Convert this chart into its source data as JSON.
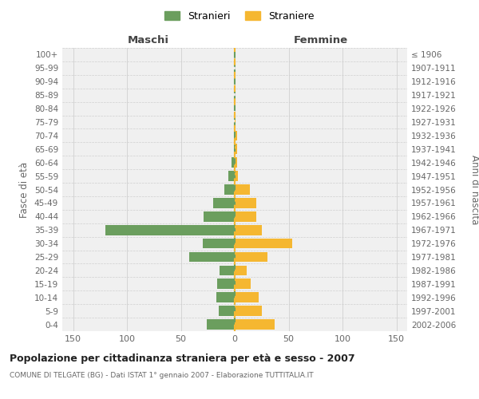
{
  "age_groups": [
    "0-4",
    "5-9",
    "10-14",
    "15-19",
    "20-24",
    "25-29",
    "30-34",
    "35-39",
    "40-44",
    "45-49",
    "50-54",
    "55-59",
    "60-64",
    "65-69",
    "70-74",
    "75-79",
    "80-84",
    "85-89",
    "90-94",
    "95-99",
    "100+"
  ],
  "birth_years": [
    "2002-2006",
    "1997-2001",
    "1992-1996",
    "1987-1991",
    "1982-1986",
    "1977-1981",
    "1972-1976",
    "1967-1971",
    "1962-1966",
    "1957-1961",
    "1952-1956",
    "1947-1951",
    "1942-1946",
    "1937-1941",
    "1932-1936",
    "1927-1931",
    "1922-1926",
    "1917-1921",
    "1912-1916",
    "1907-1911",
    "≤ 1906"
  ],
  "maschi": [
    26,
    15,
    17,
    16,
    14,
    42,
    30,
    120,
    29,
    20,
    10,
    6,
    3,
    1,
    1,
    0,
    0,
    0,
    0,
    0,
    0
  ],
  "femmine": [
    37,
    25,
    22,
    15,
    11,
    30,
    53,
    25,
    20,
    20,
    14,
    3,
    2,
    2,
    2,
    1,
    0,
    0,
    0,
    0,
    0
  ],
  "maschi_color": "#6b9e5e",
  "femmine_color": "#f5b731",
  "background_color": "#f0f0f0",
  "fig_background": "#ffffff",
  "title": "Popolazione per cittadinanza straniera per età e sesso - 2007",
  "subtitle": "COMUNE DI TELGATE (BG) - Dati ISTAT 1° gennaio 2007 - Elaborazione TUTTITALIA.IT",
  "header_left": "Maschi",
  "header_right": "Femmine",
  "ylabel_left": "Fasce di età",
  "ylabel_right": "Anni di nascita",
  "xlim": 160,
  "legend_stranieri": "Stranieri",
  "legend_straniere": "Straniere",
  "grid_color": "#d0d0d0",
  "center_line_color_green": "#6b9e5e",
  "center_line_color_yellow": "#f5b731",
  "xtick_vals": [
    -150,
    -100,
    -50,
    0,
    50,
    100,
    150
  ],
  "title_fontsize": 9,
  "subtitle_fontsize": 6.5
}
